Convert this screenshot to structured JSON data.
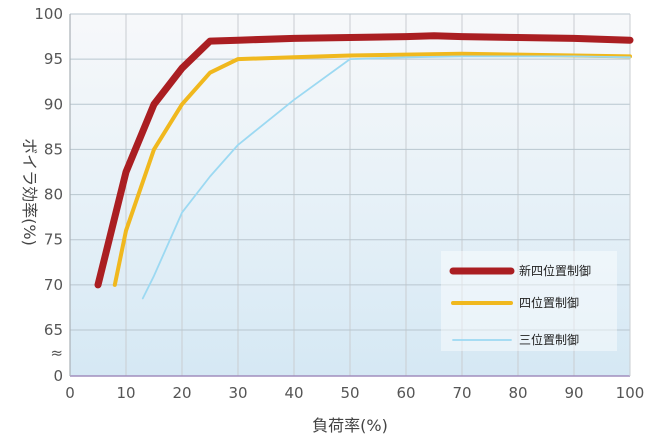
{
  "chart_data": {
    "type": "line",
    "xlabel": "負荷率(%)",
    "ylabel": "ボイラ効率(%)",
    "xlim": [
      0,
      100
    ],
    "ylim": [
      60,
      100
    ],
    "axis_break": true,
    "axis_break_symbol": "≈",
    "x_ticks": [
      0,
      10,
      20,
      30,
      40,
      50,
      60,
      70,
      80,
      90,
      100
    ],
    "y_ticks": [
      65,
      70,
      75,
      80,
      85,
      90,
      95,
      100
    ],
    "y_zero_label": "0",
    "grid": true,
    "legend_position": "right",
    "series": [
      {
        "name": "新四位置制御",
        "color": "#aa1e22",
        "x": [
          5,
          10,
          15,
          20,
          25,
          30,
          40,
          50,
          60,
          65,
          70,
          80,
          90,
          100
        ],
        "y": [
          70,
          82.5,
          90,
          94,
          97,
          97.1,
          97.3,
          97.4,
          97.5,
          97.6,
          97.5,
          97.4,
          97.3,
          97.1
        ]
      },
      {
        "name": "四位置制御",
        "color": "#f0b81e",
        "x": [
          8,
          10,
          15,
          20,
          25,
          30,
          40,
          50,
          60,
          70,
          80,
          90,
          100
        ],
        "y": [
          70,
          76,
          85,
          90,
          93.5,
          95,
          95.2,
          95.4,
          95.5,
          95.6,
          95.5,
          95.4,
          95.3
        ]
      },
      {
        "name": "三位置制御",
        "color": "#9cd9f2",
        "x": [
          13,
          15,
          20,
          25,
          30,
          40,
          50,
          60,
          70,
          80,
          90,
          100
        ],
        "y": [
          68.5,
          71,
          78,
          82,
          85.5,
          90.5,
          95,
          95.2,
          95.3,
          95.3,
          95.3,
          95.2
        ]
      }
    ]
  }
}
